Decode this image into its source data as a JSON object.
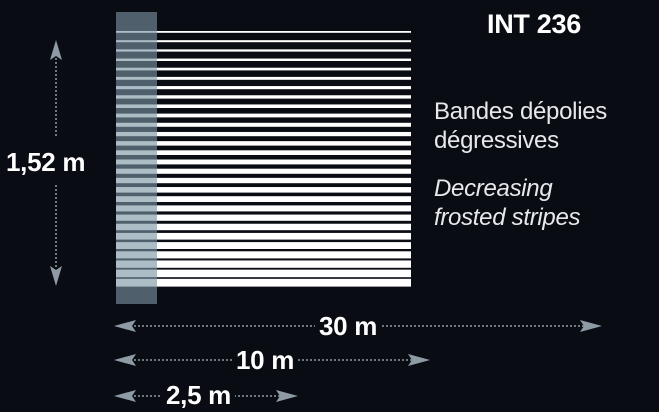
{
  "product": {
    "code": "INT 236"
  },
  "description": {
    "fr_line1": "Bandes dépolies",
    "fr_line2": "dégressives",
    "en_line1": "Decreasing",
    "en_line2": "frosted stripes"
  },
  "dimensions": {
    "height": "1,52 m",
    "length_1": "30 m",
    "length_2": "10 m",
    "length_3": "2,5 m"
  },
  "colors": {
    "background": "#0a0c14",
    "stripe": "#ffffff",
    "overlay": "#6f8a98",
    "arrow": "#8e9ba5"
  }
}
